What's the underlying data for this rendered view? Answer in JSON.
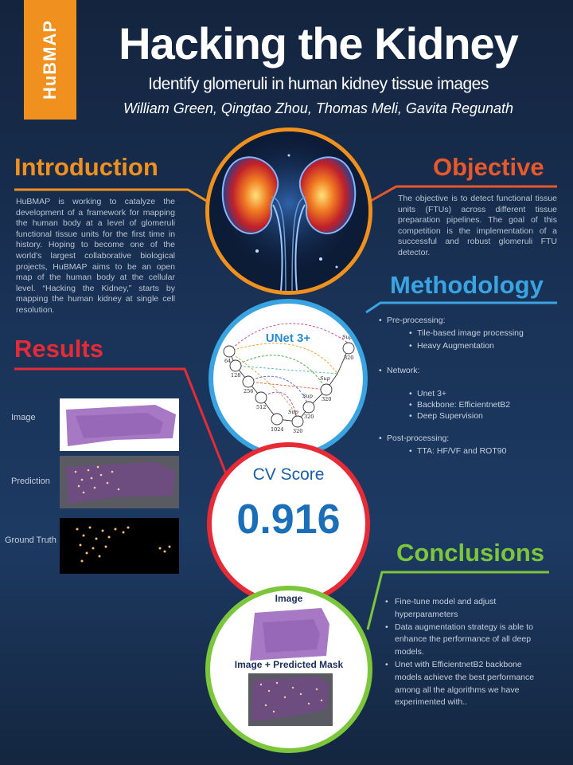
{
  "header": {
    "logo": "HuBMAP",
    "title": "Hacking the Kidney",
    "subtitle": "Identify glomeruli in human kidney tissue images",
    "authors": "William Green, Qingtao Zhou, Thomas Meli, Gavita Regunath"
  },
  "introduction": {
    "heading": "Introduction",
    "text": "HuBMAP is working to catalyze the development of a framework for mapping the human body at a level of glomeruli functional tissue units for the first time in history. Hoping to become one of the world's largest collaborative biological projects, HuBMAP aims to be an open map of the human body at the cellular level. “Hacking the Kidney,” starts by mapping the human kidney at single cell resolution."
  },
  "objective": {
    "heading": "Objective",
    "text": "The objective is to detect functional tissue units (FTUs) across different tissue preparation pipelines. The goal of this competition is the implementation of a successful and robust glomeruli FTU detector."
  },
  "methodology": {
    "heading": "Methodology",
    "diagram_title": "UNet 3+",
    "diagram_labels": {
      "n1": "64",
      "n2": "128",
      "n3": "256",
      "n4": "512",
      "n5": "1024",
      "s1": "320",
      "s2": "320",
      "s3": "320",
      "s4": "320",
      "sup": "Sup"
    },
    "preprocessing_label": "Pre-processing:",
    "preprocessing_items": [
      "Tile-based image processing",
      "Heavy Augmentation"
    ],
    "network_label": "Network:",
    "network_items": [
      "Unet 3+",
      "Backbone: EfficientnetB2",
      "Deep Supervision"
    ],
    "postprocessing_label": "Post-processing:",
    "postprocessing_items": [
      "TTA: HF/VF and ROT90"
    ]
  },
  "results": {
    "heading": "Results",
    "labels": [
      "Image",
      "Prediction",
      "Ground Truth"
    ],
    "cv_title": "CV Score",
    "cv_value": "0.916"
  },
  "conclusions": {
    "heading": "Conclusions",
    "image_label": "Image",
    "mask_label": "Image + Predicted Mask",
    "items": [
      "Fine-tune model and adjust hyperparameters",
      "Data augmentation strategy is able to enhance the performance of all deep models.",
      "Unet with EfficientnetB2  backbone models achieve the best performance among all the algorithms  we have experimented with.."
    ]
  },
  "colors": {
    "orange": "#f0901e",
    "red_orange": "#e8582a",
    "blue": "#3aa4e2",
    "red": "#e62a36",
    "green": "#7cc63c",
    "background": "#193256"
  }
}
